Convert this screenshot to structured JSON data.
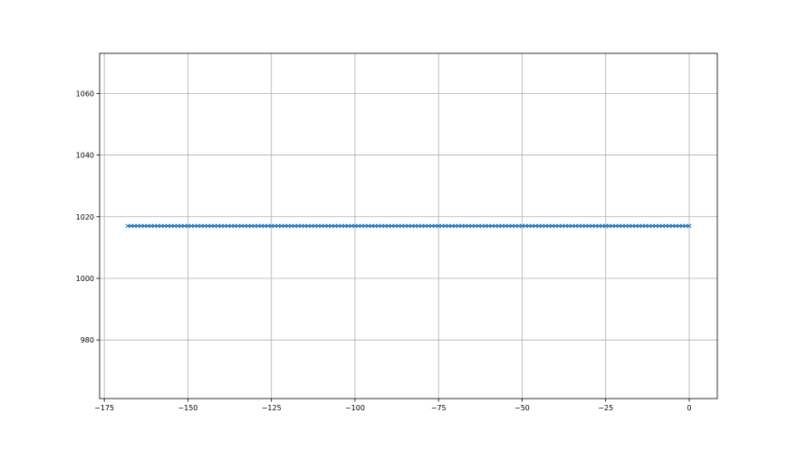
{
  "chart_data": {
    "type": "scatter",
    "title": "",
    "xlabel": "",
    "ylabel": "",
    "xlim": [
      -176.4,
      8.4
    ],
    "ylim": [
      961,
      1073
    ],
    "xticks": [
      -175,
      -150,
      -125,
      -100,
      -75,
      -50,
      -25,
      0
    ],
    "xtick_labels": [
      "−175",
      "−150",
      "−125",
      "−100",
      "−75",
      "−50",
      "−25",
      "0"
    ],
    "yticks": [
      980,
      1000,
      1020,
      1040,
      1060
    ],
    "ytick_labels": [
      "980",
      "1000",
      "1020",
      "1040",
      "1060"
    ],
    "grid": true,
    "marker": "x",
    "line": true,
    "color": "#1f77b4",
    "series": [
      {
        "x": [
          -168,
          -167,
          -166,
          -165,
          -164,
          -163,
          -162,
          -161,
          -160,
          -159,
          -158,
          -157,
          -156,
          -155,
          -154,
          -153,
          -152,
          -151,
          -150,
          -149,
          -148,
          -147,
          -146,
          -145,
          -144,
          -143,
          -142,
          -141,
          -140,
          -139,
          -138,
          -137,
          -136,
          -135,
          -134,
          -133,
          -132,
          -131,
          -130,
          -129,
          -128,
          -127,
          -126,
          -125,
          -124,
          -123,
          -122,
          -121,
          -120,
          -119,
          -118,
          -117,
          -116,
          -115,
          -114,
          -113,
          -112,
          -111,
          -110,
          -109,
          -108,
          -107,
          -106,
          -105,
          -104,
          -103,
          -102,
          -101,
          -100,
          -99,
          -98,
          -97,
          -96,
          -95,
          -94,
          -93,
          -92,
          -91,
          -90,
          -89,
          -88,
          -87,
          -86,
          -85,
          -84,
          -83,
          -82,
          -81,
          -80,
          -79,
          -78,
          -77,
          -76,
          -75,
          -74,
          -73,
          -72,
          -71,
          -70,
          -69,
          -68,
          -67,
          -66,
          -65,
          -64,
          -63,
          -62,
          -61,
          -60,
          -59,
          -58,
          -57,
          -56,
          -55,
          -54,
          -53,
          -52,
          -51,
          -50,
          -49,
          -48,
          -47,
          -46,
          -45,
          -44,
          -43,
          -42,
          -41,
          -40,
          -39,
          -38,
          -37,
          -36,
          -35,
          -34,
          -33,
          -32,
          -31,
          -30,
          -29,
          -28,
          -27,
          -26,
          -25,
          -24,
          -23,
          -22,
          -21,
          -20,
          -19,
          -18,
          -17,
          -16,
          -15,
          -14,
          -13,
          -12,
          -11,
          -10,
          -9,
          -8,
          -7,
          -6,
          -5,
          -4,
          -3,
          -2,
          -1,
          0
        ],
        "y_constant": 1017
      }
    ]
  }
}
